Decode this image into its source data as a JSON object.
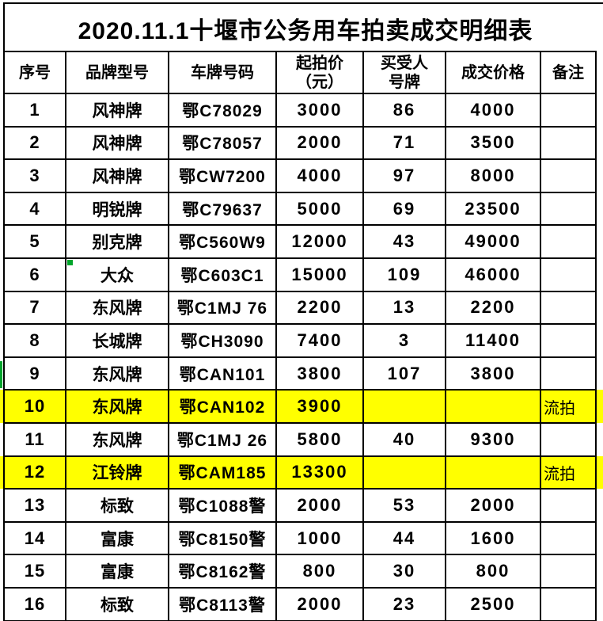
{
  "title": "2020.11.1十堰市公务用车拍卖成交明细表",
  "table": {
    "headers": [
      "序号",
      "品牌型号",
      "车牌号码",
      "起拍价\n（元）",
      "买受人\n号牌",
      "成交价格",
      "备注"
    ],
    "rows": [
      {
        "no": "1",
        "brand": "风神牌",
        "plate": "鄂C78029",
        "start_price": "3000",
        "buyer_no": "86",
        "final_price": "4000",
        "remark": "",
        "highlighted": false
      },
      {
        "no": "2",
        "brand": "风神牌",
        "plate": "鄂C78057",
        "start_price": "2000",
        "buyer_no": "71",
        "final_price": "3500",
        "remark": "",
        "highlighted": false
      },
      {
        "no": "3",
        "brand": "风神牌",
        "plate": "鄂CW7200",
        "start_price": "4000",
        "buyer_no": "97",
        "final_price": "8000",
        "remark": "",
        "highlighted": false
      },
      {
        "no": "4",
        "brand": "明锐牌",
        "plate": "鄂C79637",
        "start_price": "5000",
        "buyer_no": "69",
        "final_price": "23500",
        "remark": "",
        "highlighted": false
      },
      {
        "no": "5",
        "brand": "别克牌",
        "plate": "鄂C560W9",
        "start_price": "12000",
        "buyer_no": "43",
        "final_price": "49000",
        "remark": "",
        "highlighted": false
      },
      {
        "no": "6",
        "brand": "大众",
        "plate": "鄂C603C1",
        "start_price": "15000",
        "buyer_no": "109",
        "final_price": "46000",
        "remark": "",
        "highlighted": false
      },
      {
        "no": "7",
        "brand": "东风牌",
        "plate": "鄂C1MJ 76",
        "start_price": "2200",
        "buyer_no": "13",
        "final_price": "2200",
        "remark": "",
        "highlighted": false
      },
      {
        "no": "8",
        "brand": "长城牌",
        "plate": "鄂CH3090",
        "start_price": "7400",
        "buyer_no": "3",
        "final_price": "11400",
        "remark": "",
        "highlighted": false
      },
      {
        "no": "9",
        "brand": "东风牌",
        "plate": "鄂CAN101",
        "start_price": "3800",
        "buyer_no": "107",
        "final_price": "3800",
        "remark": "",
        "highlighted": false
      },
      {
        "no": "10",
        "brand": "东风牌",
        "plate": "鄂CAN102",
        "start_price": "3900",
        "buyer_no": "",
        "final_price": "",
        "remark": "流拍",
        "highlighted": true
      },
      {
        "no": "11",
        "brand": "东风牌",
        "plate": "鄂C1MJ 26",
        "start_price": "5800",
        "buyer_no": "40",
        "final_price": "9300",
        "remark": "",
        "highlighted": false
      },
      {
        "no": "12",
        "brand": "江铃牌",
        "plate": "鄂CAM185",
        "start_price": "13300",
        "buyer_no": "",
        "final_price": "",
        "remark": "流拍",
        "highlighted": true
      },
      {
        "no": "13",
        "brand": "标致",
        "plate": "鄂C1088警",
        "start_price": "2000",
        "buyer_no": "53",
        "final_price": "2000",
        "remark": "",
        "highlighted": false
      },
      {
        "no": "14",
        "brand": "富康",
        "plate": "鄂C8150警",
        "start_price": "1000",
        "buyer_no": "44",
        "final_price": "1600",
        "remark": "",
        "highlighted": false
      },
      {
        "no": "15",
        "brand": "富康",
        "plate": "鄂C8162警",
        "start_price": "800",
        "buyer_no": "30",
        "final_price": "800",
        "remark": "",
        "highlighted": false
      },
      {
        "no": "16",
        "brand": "标致",
        "plate": "鄂C8113警",
        "start_price": "2000",
        "buyer_no": "23",
        "final_price": "2500",
        "remark": "",
        "highlighted": false
      }
    ]
  },
  "colors": {
    "highlight_yellow": "#FFFF00",
    "marker_green": "#00A52C",
    "border_black": "#000000",
    "background_white": "#FFFFFF"
  },
  "markers": {
    "cell_error_indicator": {
      "row_no": "6",
      "column": "品牌型号"
    },
    "left_edge_bar": {
      "row_no": "9"
    }
  }
}
